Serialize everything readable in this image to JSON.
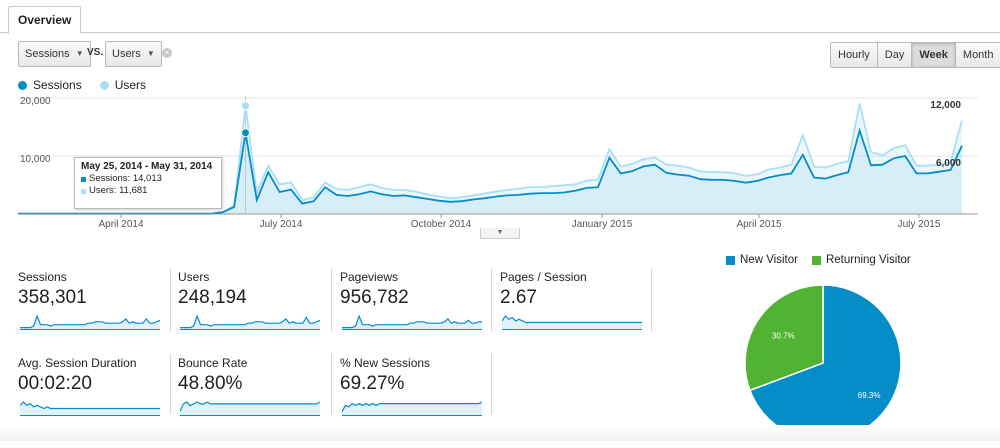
{
  "tab": {
    "label": "Overview"
  },
  "controls": {
    "metric1": "Sessions",
    "vs": "VS.",
    "metric2": "Users",
    "clear": "×",
    "granularity": [
      {
        "label": "Hourly",
        "active": false
      },
      {
        "label": "Day",
        "active": false
      },
      {
        "label": "Week",
        "active": true
      },
      {
        "label": "Month",
        "active": false
      }
    ]
  },
  "colors": {
    "sessions": "#058dc7",
    "users": "#aadff3",
    "new_visitor": "#058dc7",
    "returning_visitor": "#50b432"
  },
  "legend": {
    "sessions": "Sessions",
    "users": "Users"
  },
  "chart_data": [
    {
      "type": "line",
      "left_ticks": [
        "20,000",
        "10,000"
      ],
      "right_ticks": [
        "12,000",
        "6,000"
      ],
      "x_tick_labels": [
        "April 2014",
        "July 2014",
        "October 2014",
        "January 2015",
        "April 2015",
        "July 2015"
      ],
      "ylim_left": [
        0,
        20000
      ],
      "series": [
        {
          "name": "Sessions",
          "axis": "left",
          "values": [
            50,
            50,
            50,
            50,
            50,
            50,
            50,
            50,
            50,
            50,
            50,
            50,
            50,
            50,
            50,
            50,
            50,
            50,
            300,
            1200,
            14013,
            2400,
            7200,
            3800,
            4200,
            1800,
            2200,
            4600,
            3300,
            3100,
            3400,
            3900,
            3400,
            3100,
            3200,
            2900,
            2600,
            2300,
            2100,
            2200,
            2500,
            2700,
            3000,
            3200,
            3300,
            3500,
            3600,
            3600,
            3700,
            4000,
            4500,
            4600,
            9700,
            7000,
            7400,
            8200,
            8500,
            7100,
            6800,
            6600,
            6000,
            5900,
            5900,
            5700,
            5400,
            5700,
            6300,
            6700,
            7000,
            10200,
            6300,
            6100,
            6700,
            7200,
            14400,
            8400,
            8500,
            9600,
            10000,
            7000,
            7000,
            7300,
            7600,
            11800
          ]
        },
        {
          "name": "Users",
          "axis": "right",
          "values": [
            30,
            30,
            30,
            30,
            30,
            30,
            30,
            30,
            30,
            30,
            30,
            30,
            30,
            30,
            30,
            30,
            30,
            30,
            200,
            900,
            11681,
            2300,
            5200,
            3200,
            3400,
            1500,
            1800,
            3400,
            2700,
            2600,
            2900,
            3200,
            2800,
            2600,
            2600,
            2400,
            2100,
            1900,
            1700,
            1800,
            2000,
            2200,
            2400,
            2600,
            2700,
            2900,
            2900,
            3000,
            3100,
            3200,
            3600,
            3700,
            7000,
            5100,
            5400,
            5900,
            6100,
            5300,
            5200,
            5000,
            4600,
            4500,
            4500,
            4400,
            4100,
            4300,
            4800,
            5000,
            5300,
            8500,
            5100,
            5000,
            5400,
            5700,
            11900,
            6700,
            6300,
            7100,
            7400,
            5200,
            5200,
            5300,
            5600,
            10100
          ]
        }
      ],
      "tooltip": {
        "title": "May 25, 2014 - May 31, 2014",
        "sessions": "Sessions: 14,013",
        "users": "Users: 11,681"
      }
    },
    {
      "type": "pie",
      "slices": [
        {
          "name": "New Visitor",
          "value": 69.3,
          "label": "69.3%"
        },
        {
          "name": "Returning Visitor",
          "value": 30.7,
          "label": "30.7%"
        }
      ]
    }
  ],
  "metrics": [
    {
      "label": "Sessions",
      "value": "358,301",
      "spark": [
        1,
        1,
        1,
        1,
        2,
        9,
        3,
        3,
        3,
        2,
        3,
        3,
        3,
        3,
        3,
        3,
        3,
        3,
        3,
        3,
        4,
        4,
        5,
        5,
        5,
        4,
        4,
        4,
        4,
        4,
        5,
        7,
        4,
        5,
        4,
        4,
        4,
        7,
        4,
        4,
        5,
        6
      ]
    },
    {
      "label": "Users",
      "value": "248,194",
      "spark": [
        1,
        1,
        1,
        1,
        2,
        9,
        3,
        3,
        3,
        2,
        3,
        3,
        3,
        3,
        3,
        3,
        3,
        3,
        3,
        3,
        4,
        4,
        5,
        5,
        5,
        4,
        4,
        4,
        4,
        4,
        5,
        7,
        4,
        5,
        4,
        4,
        4,
        8,
        4,
        4,
        5,
        6
      ]
    },
    {
      "label": "Pageviews",
      "value": "956,782",
      "spark": [
        1,
        1,
        1,
        1,
        2,
        9,
        3,
        3,
        3,
        2,
        3,
        3,
        3,
        3,
        3,
        3,
        3,
        3,
        3,
        3,
        4,
        4,
        5,
        5,
        5,
        4,
        4,
        4,
        4,
        4,
        5,
        7,
        4,
        5,
        4,
        4,
        4,
        6,
        4,
        4,
        5,
        5
      ]
    },
    {
      "label": "Pages / Session",
      "value": "2.67",
      "spark": [
        5,
        8,
        6,
        7,
        5,
        6,
        5,
        4,
        4,
        4,
        4,
        4,
        4,
        4,
        4,
        4,
        4,
        4,
        4,
        4,
        4,
        4,
        4,
        4,
        4,
        4,
        4,
        4,
        4,
        4,
        4,
        4,
        4,
        4,
        4,
        4,
        4,
        4,
        4,
        4,
        4,
        4
      ]
    },
    {
      "label": "Avg. Session Duration",
      "value": "00:02:20",
      "spark": [
        6,
        8,
        6,
        7,
        5,
        6,
        5,
        4,
        5,
        4,
        4,
        4,
        4,
        4,
        4,
        4,
        4,
        4,
        4,
        4,
        4,
        4,
        4,
        4,
        4,
        4,
        4,
        4,
        4,
        4,
        4,
        4,
        4,
        4,
        4,
        4,
        4,
        4,
        4,
        4,
        4,
        4
      ]
    },
    {
      "label": "Bounce Rate",
      "value": "48.80%",
      "spark": [
        2,
        6,
        7,
        5,
        6,
        7,
        6,
        6,
        7,
        6,
        6,
        6,
        6,
        6,
        6,
        6,
        6,
        6,
        6,
        6,
        6,
        6,
        6,
        6,
        6,
        6,
        6,
        6,
        6,
        6,
        6,
        6,
        6,
        6,
        6,
        6,
        6,
        6,
        6,
        6,
        6,
        7
      ]
    },
    {
      "label": "% New Sessions",
      "value": "69.27%",
      "spark": [
        2,
        6,
        5,
        7,
        6,
        7,
        6,
        7,
        6,
        7,
        6,
        7,
        7,
        7,
        7,
        7,
        7,
        7,
        7,
        7,
        7,
        7,
        7,
        7,
        7,
        7,
        7,
        7,
        7,
        7,
        7,
        7,
        7,
        7,
        7,
        7,
        7,
        7,
        7,
        7,
        7,
        8
      ]
    }
  ]
}
